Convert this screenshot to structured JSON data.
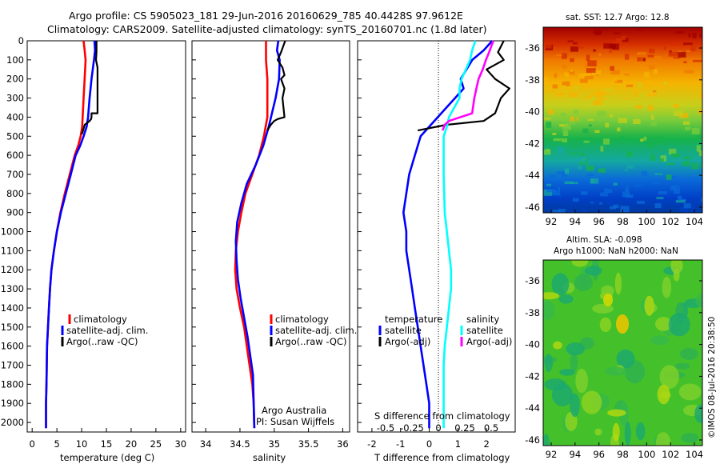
{
  "header": {
    "line1": "Argo profile: CS 5905023_181 29-Jun-2016 20160629_785 40.4428S 97.9612E",
    "line2": "Climatology: CARS2009. Satellite-adjusted climatology: synTS_20160701.nc (1.8d later)"
  },
  "colors": {
    "climatology": "#ff0000",
    "satellite": "#0000ff",
    "argo": "#000000",
    "s_satellite": "#00ffff",
    "s_argo": "#ff00ff"
  },
  "depth_axis": {
    "ticks": [
      0,
      100,
      200,
      300,
      400,
      500,
      600,
      700,
      800,
      900,
      1000,
      1100,
      1200,
      1300,
      1400,
      1500,
      1600,
      1700,
      1800,
      1900,
      2000
    ]
  },
  "legend": {
    "climatology": "climatology",
    "satellite_adj": "satellite-adj. clim.",
    "argo_raw": "Argo(..raw -QC)",
    "temperature": "temperature",
    "salinity": "salinity",
    "satellite": "satellite",
    "argo_adj": "Argo(-adj)"
  },
  "credits": {
    "org": "Argo Australia",
    "pi": "PI: Susan Wijffels",
    "stamp": "©IMOS 08-Jul-2016 20:38:50"
  },
  "maps": {
    "sst_title": "sat. SST: 12.7 Argo: 12.8",
    "sla_title1": "Altim. SLA: -0.098",
    "sla_title2": "Argo h1000: NaN h2000: NaN",
    "lon_ticks": [
      92,
      94,
      96,
      98,
      100,
      102,
      104
    ],
    "lat_ticks": [
      -36,
      -38,
      -40,
      -42,
      -44,
      -46
    ]
  },
  "chart_data": [
    {
      "type": "line",
      "xlabel": "temperature (deg C)",
      "ylabel": "",
      "xlim": [
        -1,
        31
      ],
      "ylim": [
        2050,
        0
      ],
      "xticks": [
        0,
        5,
        10,
        15,
        20,
        25,
        30
      ],
      "series": [
        {
          "name": "climatology",
          "x": [
            10.4,
            10.6,
            10.8,
            10.6,
            10.4,
            10.2,
            10.1,
            9.8,
            9.3,
            8.6,
            7.6,
            6.6,
            5.7,
            5.0,
            4.4,
            3.9,
            3.6,
            3.4,
            3.2,
            3.0,
            2.9,
            2.8,
            2.8
          ],
          "y": [
            0,
            50,
            100,
            200,
            300,
            400,
            450,
            500,
            550,
            600,
            700,
            800,
            900,
            1000,
            1100,
            1200,
            1300,
            1400,
            1500,
            1600,
            1800,
            1900,
            2030
          ]
        },
        {
          "name": "satellite-adj. clim.",
          "x": [
            12.6,
            12.7,
            12.5,
            12.0,
            11.6,
            11.3,
            11.0,
            10.4,
            9.7,
            8.8,
            7.8,
            6.8,
            5.8,
            5.0,
            4.4,
            3.9,
            3.6,
            3.4,
            3.2,
            3.0,
            2.9,
            2.8,
            2.8
          ],
          "y": [
            0,
            50,
            100,
            200,
            300,
            400,
            450,
            500,
            550,
            600,
            700,
            800,
            900,
            1000,
            1100,
            1200,
            1300,
            1400,
            1500,
            1600,
            1800,
            1900,
            2030
          ]
        },
        {
          "name": "Argo(..raw -QC)",
          "x": [
            13.0,
            13.0,
            12.9,
            13.2,
            13.2,
            12.0,
            12.0,
            11.9,
            11.6,
            10.6,
            10.3,
            10.0
          ],
          "y": [
            0,
            60,
            100,
            140,
            380,
            380,
            400,
            410,
            420,
            440,
            470,
            490
          ]
        }
      ]
    },
    {
      "type": "line",
      "xlabel": "salinity",
      "ylabel": "",
      "xlim": [
        33.8,
        36.1
      ],
      "ylim": [
        2050,
        0
      ],
      "xticks": [
        34,
        34.5,
        35,
        35.5,
        36
      ],
      "series": [
        {
          "name": "climatology",
          "x": [
            34.88,
            34.88,
            34.9,
            34.9,
            34.85,
            34.78,
            34.68,
            34.58,
            34.52,
            34.47,
            34.44,
            34.43,
            34.45,
            34.5,
            34.56,
            34.6,
            34.64,
            34.68,
            34.7,
            34.71
          ],
          "y": [
            0,
            100,
            200,
            400,
            500,
            600,
            700,
            800,
            900,
            1000,
            1100,
            1200,
            1300,
            1400,
            1500,
            1600,
            1700,
            1800,
            1900,
            2030
          ]
        },
        {
          "name": "satellite-adj. clim.",
          "x": [
            35.06,
            35.04,
            35.08,
            35.07,
            35.02,
            34.92,
            34.84,
            34.73,
            34.6,
            34.52,
            34.46,
            34.44,
            34.45,
            34.47,
            34.51,
            34.56,
            34.61,
            34.65,
            34.69,
            34.7,
            34.71
          ],
          "y": [
            0,
            50,
            100,
            200,
            300,
            450,
            550,
            650,
            750,
            850,
            950,
            1050,
            1150,
            1250,
            1350,
            1450,
            1550,
            1650,
            1750,
            1900,
            2030
          ]
        },
        {
          "name": "Argo(..raw -QC)",
          "x": [
            35.16,
            35.1,
            35.05,
            35.12,
            35.15,
            35.1,
            35.15,
            35.12,
            35.15,
            35.05,
            35.0,
            34.95,
            34.9
          ],
          "y": [
            0,
            60,
            100,
            140,
            180,
            200,
            250,
            300,
            400,
            410,
            420,
            440,
            470
          ]
        }
      ]
    },
    {
      "type": "line",
      "xlabel": "T difference from climatology",
      "ylabel": "",
      "xlim": [
        -2.5,
        3.0
      ],
      "ylim": [
        2050,
        0
      ],
      "xticks": [
        -2,
        -1,
        0,
        1,
        2
      ],
      "secondary_xlabel": "S difference from climatology",
      "secondary_xticks": [
        -0.5,
        -0.25,
        0,
        0.25,
        0.5
      ],
      "series": [
        {
          "name": "temperature satellite",
          "x": [
            2.2,
            1.9,
            1.5,
            1.1,
            1.2,
            0.9,
            0.6,
            0.3,
            -0.3,
            -0.5,
            -0.7,
            -0.8,
            -0.9,
            -0.8,
            -0.8,
            -0.7,
            -0.6,
            -0.5,
            -0.4,
            -0.3,
            -0.2,
            -0.1,
            0.0,
            0.0
          ],
          "y": [
            0,
            50,
            100,
            200,
            250,
            300,
            350,
            400,
            500,
            600,
            700,
            800,
            900,
            1000,
            1100,
            1200,
            1300,
            1400,
            1500,
            1600,
            1700,
            1800,
            1900,
            2030
          ]
        },
        {
          "name": "temperature Argo(-adj)",
          "x": [
            2.6,
            2.4,
            2.6,
            2.0,
            2.3,
            2.8,
            2.5,
            2.3,
            1.9,
            0.6,
            -0.4
          ],
          "y": [
            0,
            60,
            100,
            150,
            200,
            250,
            300,
            380,
            420,
            440,
            470
          ]
        },
        {
          "name": "salinity satellite",
          "x": [
            0.35,
            0.32,
            0.3,
            0.22,
            0.2,
            0.2,
            0.15,
            0.1,
            0.08,
            0.05,
            0.05,
            0.06,
            0.08,
            0.1,
            0.12,
            0.12,
            0.1,
            0.08,
            0.06,
            0.05,
            0.05,
            0.05,
            0.05
          ],
          "y": [
            0,
            50,
            100,
            200,
            250,
            300,
            350,
            400,
            450,
            500,
            700,
            900,
            1000,
            1100,
            1200,
            1300,
            1400,
            1500,
            1600,
            1700,
            1800,
            1900,
            2030
          ]
        },
        {
          "name": "salinity Argo(-adj)",
          "x": [
            0.52,
            0.48,
            0.45,
            0.42,
            0.38,
            0.36,
            0.34,
            0.32,
            0.1,
            0.06,
            0.04
          ],
          "y": [
            0,
            60,
            100,
            150,
            200,
            250,
            300,
            380,
            420,
            440,
            470
          ]
        }
      ]
    }
  ]
}
